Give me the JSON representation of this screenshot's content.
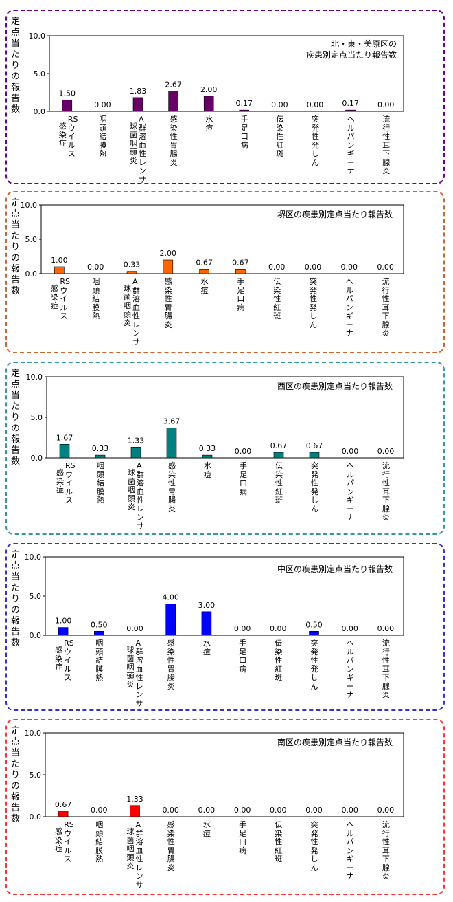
{
  "chart_data": [
    {
      "type": "bar",
      "title_lines": [
        "北・東・美原区の",
        "疾患別定点当たり報告数"
      ],
      "ylabel": "定点当たりの報告数",
      "yticks": [
        "10.0",
        "5.0",
        "0.0"
      ],
      "ylim": [
        0,
        10
      ],
      "color": "#660066",
      "border_color": "#660099",
      "categories": [
        [
          "RSウイルス",
          "感染症"
        ],
        [
          "咽頭結膜熱"
        ],
        [
          "A群溶血性レンサ",
          "球菌咽頭炎"
        ],
        [
          "感染性胃腸炎"
        ],
        [
          "水痘"
        ],
        [
          "手足口病"
        ],
        [
          "伝染性紅斑"
        ],
        [
          "突発性発しん"
        ],
        [
          "ヘルパンギーナ"
        ],
        [
          "流行性耳下腺炎"
        ]
      ],
      "values": [
        1.5,
        0.0,
        1.83,
        2.67,
        2.0,
        0.17,
        0.0,
        0.0,
        0.17,
        0.0
      ],
      "value_labels": [
        "1.50",
        "0.00",
        "1.83",
        "2.67",
        "2.00",
        "0.17",
        "0.00",
        "0.00",
        "0.17",
        "0.00"
      ]
    },
    {
      "type": "bar",
      "title_lines": [
        "堺区の疾患別定点当たり報告数"
      ],
      "ylabel": "定点当たりの報告数",
      "yticks": [
        "10.0",
        "5.0",
        "0.0"
      ],
      "ylim": [
        0,
        10
      ],
      "color": "#ff6600",
      "border_color": "#cc6633",
      "categories": [
        [
          "RSウイルス",
          "感染症"
        ],
        [
          "咽頭結膜熱"
        ],
        [
          "A群溶血性レンサ",
          "球菌咽頭炎"
        ],
        [
          "感染性胃腸炎"
        ],
        [
          "水痘"
        ],
        [
          "手足口病"
        ],
        [
          "伝染性紅斑"
        ],
        [
          "突発性発しん"
        ],
        [
          "ヘルパンギーナ"
        ],
        [
          "流行性耳下腺炎"
        ]
      ],
      "values": [
        1.0,
        0.0,
        0.33,
        2.0,
        0.67,
        0.67,
        0.0,
        0.0,
        0.0,
        0.0
      ],
      "value_labels": [
        "1.00",
        "0.00",
        "0.33",
        "2.00",
        "0.67",
        "0.67",
        "0.00",
        "0.00",
        "0.00",
        "0.00"
      ]
    },
    {
      "type": "bar",
      "title_lines": [
        "西区の疾患別定点当たり報告数"
      ],
      "ylabel": "定点当たりの報告数",
      "yticks": [
        "10.0",
        "5.0",
        "0.0"
      ],
      "ylim": [
        0,
        10
      ],
      "color": "#008080",
      "border_color": "#339999",
      "categories": [
        [
          "RSウイルス",
          "感染症"
        ],
        [
          "咽頭結膜熱"
        ],
        [
          "A群溶血性レンサ",
          "球菌咽頭炎"
        ],
        [
          "感染性胃腸炎"
        ],
        [
          "水痘"
        ],
        [
          "手足口病"
        ],
        [
          "伝染性紅斑"
        ],
        [
          "突発性発しん"
        ],
        [
          "ヘルパンギーナ"
        ],
        [
          "流行性耳下腺炎"
        ]
      ],
      "values": [
        1.67,
        0.33,
        1.33,
        3.67,
        0.33,
        0.0,
        0.67,
        0.67,
        0.0,
        0.0
      ],
      "value_labels": [
        "1.67",
        "0.33",
        "1.33",
        "3.67",
        "0.33",
        "0.00",
        "0.67",
        "0.67",
        "0.00",
        "0.00"
      ]
    },
    {
      "type": "bar",
      "title_lines": [
        "中区の疾患別定点当たり報告数"
      ],
      "ylabel": "定点当たりの報告数",
      "yticks": [
        "10.0",
        "5.0",
        "0.0"
      ],
      "ylim": [
        0,
        10
      ],
      "color": "#0000ff",
      "border_color": "#3333cc",
      "categories": [
        [
          "RSウイルス",
          "感染症"
        ],
        [
          "咽頭結膜熱"
        ],
        [
          "A群溶血性レンサ",
          "球菌咽頭炎"
        ],
        [
          "感染性胃腸炎"
        ],
        [
          "水痘"
        ],
        [
          "手足口病"
        ],
        [
          "伝染性紅斑"
        ],
        [
          "突発性発しん"
        ],
        [
          "ヘルパンギーナ"
        ],
        [
          "流行性耳下腺炎"
        ]
      ],
      "values": [
        1.0,
        0.5,
        0.0,
        4.0,
        3.0,
        0.0,
        0.0,
        0.5,
        0.0,
        0.0
      ],
      "value_labels": [
        "1.00",
        "0.50",
        "0.00",
        "4.00",
        "3.00",
        "0.00",
        "0.00",
        "0.50",
        "0.00",
        "0.00"
      ]
    },
    {
      "type": "bar",
      "title_lines": [
        "南区の疾患別定点当たり報告数"
      ],
      "ylabel": "定点当たりの報告数",
      "yticks": [
        "10.0",
        "5.0",
        "0.0"
      ],
      "ylim": [
        0,
        10
      ],
      "color": "#ff0000",
      "border_color": "#ff3333",
      "categories": [
        [
          "RSウイルス",
          "感染症"
        ],
        [
          "咽頭結膜熱"
        ],
        [
          "A群溶血性レンサ",
          "球菌咽頭炎"
        ],
        [
          "感染性胃腸炎"
        ],
        [
          "水痘"
        ],
        [
          "手足口病"
        ],
        [
          "伝染性紅斑"
        ],
        [
          "突発性発しん"
        ],
        [
          "ヘルパンギーナ"
        ],
        [
          "流行性耳下腺炎"
        ]
      ],
      "values": [
        0.67,
        0.0,
        1.33,
        0.0,
        0.0,
        0.0,
        0.0,
        0.0,
        0.0,
        0.0
      ],
      "value_labels": [
        "0.67",
        "0.00",
        "1.33",
        "0.00",
        "0.00",
        "0.00",
        "0.00",
        "0.00",
        "0.00",
        "0.00"
      ]
    }
  ]
}
